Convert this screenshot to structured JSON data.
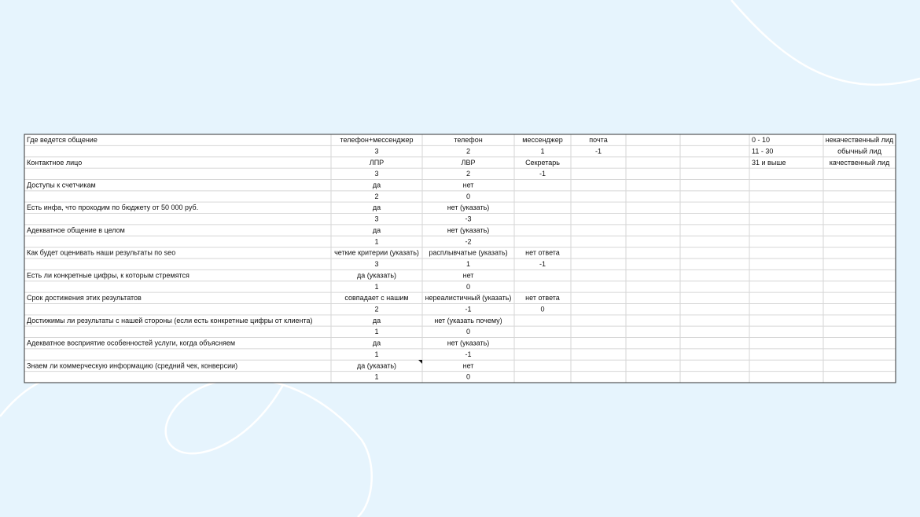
{
  "table": {
    "rows": [
      [
        "Где ведется общение",
        "телефон+мессенджер",
        "телефон",
        "мессенджер",
        "почта",
        null,
        null,
        "0 - 10",
        "некачественный лид"
      ],
      [
        null,
        3,
        2,
        1,
        -1,
        null,
        null,
        "11 - 30",
        "обычный лид"
      ],
      [
        "Контактное лицо",
        "ЛПР",
        "ЛВР",
        "Секретарь",
        null,
        null,
        null,
        "31 и выше",
        "качественный лид"
      ],
      [
        null,
        3,
        2,
        -1,
        null,
        null,
        null,
        null,
        null
      ],
      [
        "Доступы к счетчикам",
        "да",
        "нет",
        null,
        null,
        null,
        null,
        null,
        null
      ],
      [
        null,
        2,
        0,
        null,
        null,
        null,
        null,
        null,
        null
      ],
      [
        "Есть инфа, что проходим по бюджету от 50 000 руб.",
        "да",
        "нет (указать)",
        null,
        null,
        null,
        null,
        null,
        null
      ],
      [
        null,
        3,
        -3,
        null,
        null,
        null,
        null,
        null,
        null
      ],
      [
        "Адекватное общение в целом",
        "да",
        "нет (указать)",
        null,
        null,
        null,
        null,
        null,
        null
      ],
      [
        null,
        1,
        -2,
        null,
        null,
        null,
        null,
        null,
        null
      ],
      [
        "Как будет оценивать наши результаты по seo",
        "четкие критерии (указать)",
        "расплывчатые (указать)",
        "нет ответа",
        null,
        null,
        null,
        null,
        null
      ],
      [
        null,
        3,
        1,
        -1,
        null,
        null,
        null,
        null,
        null
      ],
      [
        "Есть ли конкретные цифры, к которым стремятся",
        "да (указать)",
        "нет",
        null,
        null,
        null,
        null,
        null,
        null
      ],
      [
        null,
        1,
        0,
        null,
        null,
        null,
        null,
        null,
        null
      ],
      [
        "Срок достижения этих результатов",
        "совпадает с нашим",
        "нереалистичный (указать)",
        "нет ответа",
        null,
        null,
        null,
        null,
        null
      ],
      [
        null,
        2,
        -1,
        0,
        null,
        null,
        null,
        null,
        null
      ],
      [
        "Достижимы ли результаты с нашей стороны (если есть конкретные цифры от клиента)",
        "да",
        "нет (указать почему)",
        null,
        null,
        null,
        null,
        null,
        null
      ],
      [
        null,
        1,
        0,
        null,
        null,
        null,
        null,
        null,
        null
      ],
      [
        "Адекватное восприятие особенностей услуги, когда объясняем",
        "да",
        "нет (указать)",
        null,
        null,
        null,
        null,
        null,
        null
      ],
      [
        null,
        1,
        -1,
        null,
        null,
        null,
        null,
        null,
        null
      ],
      [
        "Знаем ли коммерческую информацию (средний чек, конверсии)",
        "да (указать)",
        "нет",
        null,
        null,
        null,
        null,
        null,
        null
      ],
      [
        null,
        1,
        0,
        null,
        null,
        null,
        null,
        null,
        null
      ]
    ]
  }
}
